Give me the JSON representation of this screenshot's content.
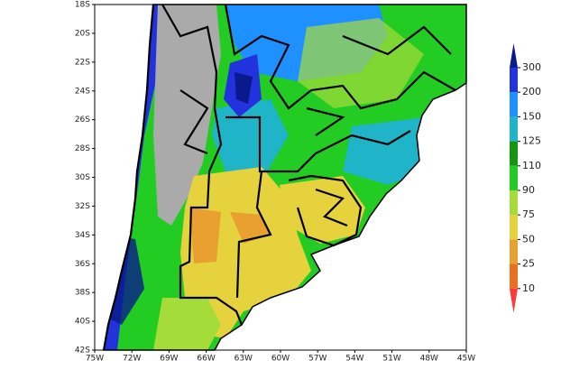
{
  "map": {
    "x_labels": [
      "75W",
      "72W",
      "69W",
      "66W",
      "63W",
      "60W",
      "57W",
      "54W",
      "51W",
      "48W",
      "45W"
    ],
    "y_labels": [
      "18S",
      "20S",
      "22S",
      "24S",
      "26S",
      "28S",
      "30S",
      "32S",
      "34S",
      "36S",
      "38S",
      "40S",
      "42S"
    ],
    "legend": {
      "labels": [
        "300",
        "200",
        "150",
        "125",
        "110",
        "90",
        "75",
        "50",
        "25",
        "10"
      ],
      "colors": [
        "#0a1a8c",
        "#2233dd",
        "#1e90ff",
        "#20b4c8",
        "#149614",
        "#22cc22",
        "#a6dc3a",
        "#e6d23c",
        "#e8a030",
        "#e8701e",
        "#ff3838"
      ]
    }
  }
}
